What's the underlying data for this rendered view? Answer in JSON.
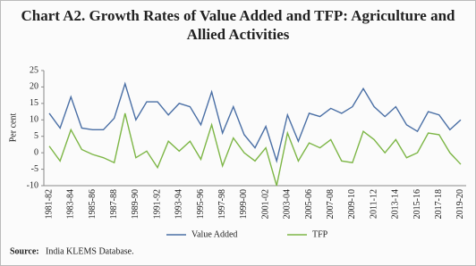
{
  "chart_data": {
    "type": "line",
    "title": "Chart A2. Growth Rates of Value Added and TFP: Agriculture and Allied Activities",
    "y_label": "Per cent",
    "source_label": "Source:",
    "source": "India KLEMS Database.",
    "categories": [
      "1981-82",
      null,
      "1983-84",
      null,
      "1985-86",
      null,
      "1987-88",
      null,
      "1989-90",
      null,
      "1991-92",
      null,
      "1993-94",
      null,
      "1995-96",
      null,
      "1997-98",
      null,
      "1999-00",
      null,
      "2001-02",
      null,
      "2003-04",
      null,
      "2005-06",
      null,
      "2007-08",
      null,
      "2009-10",
      null,
      "2011-12",
      null,
      "2013-14",
      null,
      "2015-16",
      null,
      "2017-18",
      null,
      "2019-20"
    ],
    "series": [
      {
        "name": "Value Added",
        "color": "#4a6fa5",
        "values": [
          12,
          7.5,
          17,
          7.5,
          7,
          7,
          10.5,
          21,
          10,
          15.5,
          15.5,
          11.5,
          15,
          14,
          8.5,
          18.5,
          6,
          14,
          5.5,
          1.5,
          8,
          -2.5,
          11.5,
          3.5,
          12,
          11,
          13.5,
          12,
          14,
          19.5,
          14,
          11,
          14,
          8.5,
          6.5,
          12.5,
          11.5,
          7,
          10
        ]
      },
      {
        "name": "TFP",
        "color": "#7db646",
        "values": [
          2,
          -2.5,
          7,
          1,
          -0.5,
          -1.5,
          -3,
          12,
          -1.5,
          0.5,
          -4.5,
          3.5,
          0.5,
          3.5,
          -2,
          8.5,
          -4,
          4.5,
          0,
          -2.5,
          1.5,
          -10,
          6,
          -2.5,
          3,
          1.5,
          4,
          -2.5,
          -3,
          6.5,
          4,
          0,
          4,
          -1.5,
          0,
          6,
          5.5,
          0,
          -3.5
        ]
      }
    ],
    "ylim": [
      -10,
      25
    ],
    "yticks": [
      -10,
      -5,
      0,
      5,
      10,
      15,
      20,
      25
    ],
    "grid": false,
    "legend": "bottom"
  }
}
